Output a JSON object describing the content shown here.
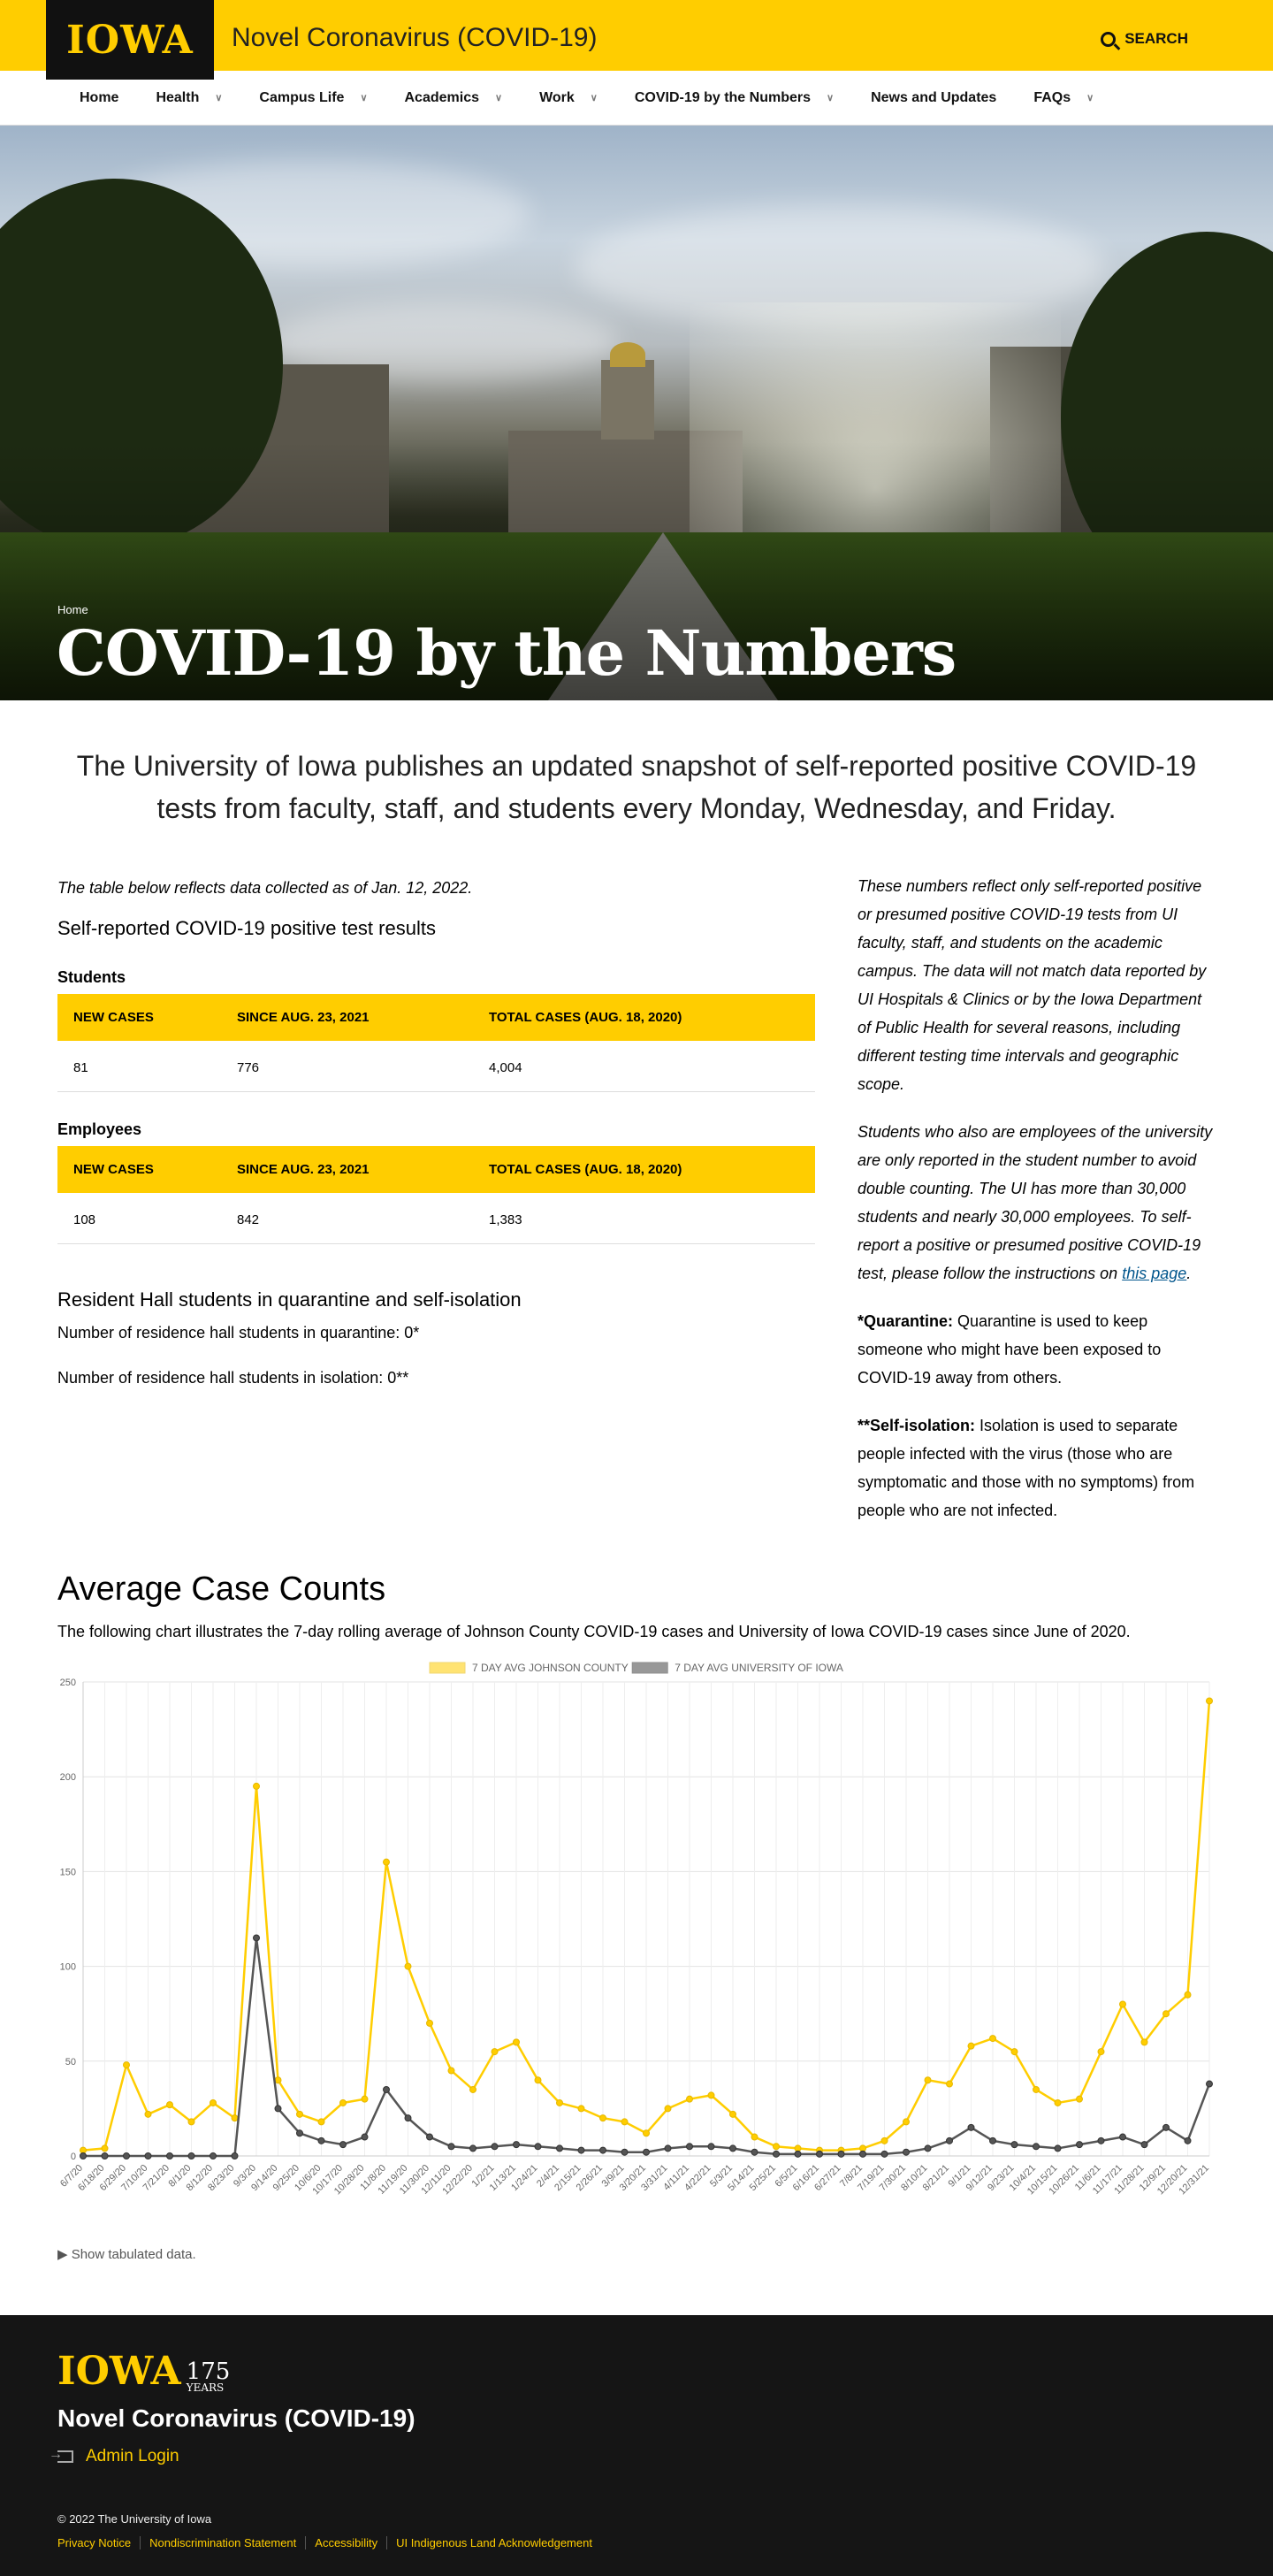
{
  "header": {
    "logo_text": "IOWA",
    "site_title": "Novel Coronavirus (COVID-19)",
    "search_label": "SEARCH"
  },
  "nav": [
    {
      "label": "Home",
      "dropdown": false
    },
    {
      "label": "Health",
      "dropdown": true
    },
    {
      "label": "Campus Life",
      "dropdown": true
    },
    {
      "label": "Academics",
      "dropdown": true
    },
    {
      "label": "Work",
      "dropdown": true
    },
    {
      "label": "COVID-19 by the Numbers",
      "dropdown": true
    },
    {
      "label": "News and Updates",
      "dropdown": false
    },
    {
      "label": "FAQs",
      "dropdown": true
    }
  ],
  "hero": {
    "breadcrumb": "Home",
    "title": "COVID-19 by the Numbers"
  },
  "intro": "The University of Iowa publishes an updated snapshot of self-reported positive COVID-19 tests from faculty, staff, and students every Monday, Wednesday, and Friday.",
  "main": {
    "as_of": "The table below reflects data collected as of Jan. 12, 2022.",
    "section_title": "Self-reported COVID-19 positive test results",
    "columns": [
      "NEW CASES",
      "SINCE AUG. 23, 2021",
      "TOTAL CASES (AUG. 18, 2020)"
    ],
    "students": {
      "title": "Students",
      "values": [
        "81",
        "776",
        "4,004"
      ]
    },
    "employees": {
      "title": "Employees",
      "values": [
        "108",
        "842",
        "1,383"
      ]
    },
    "residence": {
      "title": "Resident Hall students in quarantine and self-isolation",
      "quarantine": "Number of residence hall students in quarantine: 0*",
      "isolation": "Number of residence hall students in isolation: 0**"
    }
  },
  "side": {
    "p1": "These numbers reflect only self-reported positive or presumed positive COVID-19 tests from UI faculty, staff, and students on the academic campus. The data will not match data reported by UI Hospitals & Clinics or by the Iowa Department of Public Health for several reasons, including different testing time intervals and geographic scope.",
    "p2": "Students who also are employees of the university are only reported in the student number to avoid double counting. The UI has more than 30,000 students and nearly 30,000 employees. To self-report a positive or presumed positive COVID-19 test, please follow the instructions on",
    "p2_link": "this page",
    "p2_end": ".",
    "quarantine_label": "*Quarantine:",
    "quarantine_text": " Quarantine is used to keep someone who might have been exposed to COVID-19 away from others.",
    "isolation_label": "**Self-isolation:",
    "isolation_text": " Isolation is used to separate people infected with the virus (those who are symptomatic and those with no symptoms) from people who are not infected."
  },
  "average": {
    "title": "Average Case Counts",
    "description": "The following chart illustrates the 7-day rolling average of Johnson County COVID-19 cases and University of Iowa COVID-19 cases since June of 2020.",
    "toggle": "Show tabulated data."
  },
  "chart_data": {
    "type": "line",
    "x": [
      "6/7/20",
      "6/18/20",
      "6/29/20",
      "7/10/20",
      "7/21/20",
      "8/1/20",
      "8/12/20",
      "8/23/20",
      "9/3/20",
      "9/14/20",
      "9/25/20",
      "10/6/20",
      "10/17/20",
      "10/28/20",
      "11/8/20",
      "11/19/20",
      "11/30/20",
      "12/11/20",
      "12/22/20",
      "1/2/21",
      "1/13/21",
      "1/24/21",
      "2/4/21",
      "2/15/21",
      "2/26/21",
      "3/9/21",
      "3/20/21",
      "3/31/21",
      "4/11/21",
      "4/22/21",
      "5/3/21",
      "5/14/21",
      "5/25/21",
      "6/5/21",
      "6/16/21",
      "6/27/21",
      "7/8/21",
      "7/19/21",
      "7/30/21",
      "8/10/21",
      "8/21/21",
      "9/1/21",
      "9/12/21",
      "9/23/21",
      "10/4/21",
      "10/15/21",
      "10/26/21",
      "11/6/21",
      "11/17/21",
      "11/28/21",
      "12/9/21",
      "12/20/21",
      "12/31/21"
    ],
    "series": [
      {
        "name": "7 DAY AVG JOHNSON COUNTY",
        "color": "#FFCD00",
        "values": [
          3,
          4,
          48,
          22,
          27,
          18,
          28,
          20,
          195,
          40,
          22,
          18,
          28,
          30,
          155,
          100,
          70,
          45,
          35,
          55,
          60,
          40,
          28,
          25,
          20,
          18,
          12,
          25,
          30,
          32,
          22,
          10,
          5,
          4,
          3,
          3,
          4,
          8,
          18,
          40,
          38,
          58,
          62,
          55,
          35,
          28,
          30,
          55,
          80,
          60,
          75,
          85,
          240
        ]
      },
      {
        "name": "7 DAY AVG UNIVERSITY OF IOWA",
        "color": "#555555",
        "values": [
          0,
          0,
          0,
          0,
          0,
          0,
          0,
          0,
          115,
          25,
          12,
          8,
          6,
          10,
          35,
          20,
          10,
          5,
          4,
          5,
          6,
          5,
          4,
          3,
          3,
          2,
          2,
          4,
          5,
          5,
          4,
          2,
          1,
          1,
          1,
          1,
          1,
          1,
          2,
          4,
          8,
          15,
          8,
          6,
          5,
          4,
          6,
          8,
          10,
          6,
          15,
          8,
          38
        ]
      }
    ],
    "ylim": [
      0,
      250
    ],
    "yticks": [
      0,
      50,
      100,
      150,
      200,
      250
    ],
    "grid": true,
    "legend": "top-center"
  },
  "footer": {
    "logo_text": "IOWA",
    "years_number": "175",
    "years_word": "YEARS",
    "title": "Novel Coronavirus (COVID-19)",
    "admin_login": "Admin Login",
    "copyright": "© 2022 The University of Iowa",
    "links": [
      "Privacy Notice",
      "Nondiscrimination Statement",
      "Accessibility",
      "UI Indigenous Land Acknowledgement"
    ]
  }
}
